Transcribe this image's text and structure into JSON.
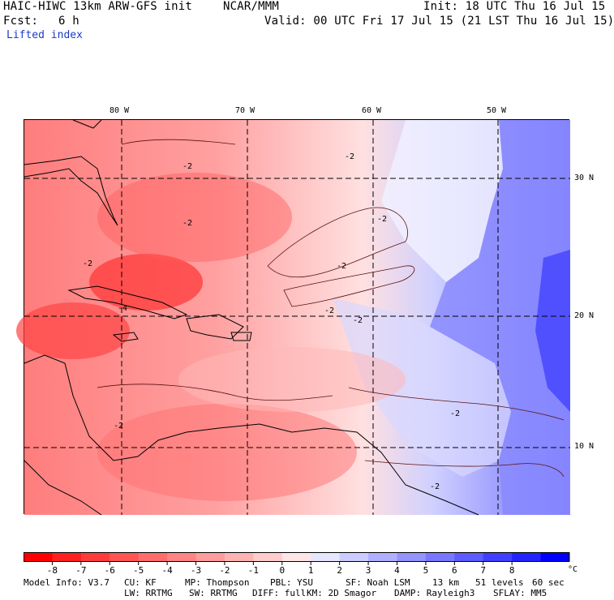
{
  "header": {
    "model_title": "HAIC-HIWC 13km ARW-GFS init",
    "institution": "NCAR/MMM",
    "init": "Init: 18 UTC Thu 16 Jul 15",
    "fcst_label": "Fcst:",
    "fcst_value": "6 h",
    "valid": "Valid: 00 UTC Fri 17 Jul 15 (21 LST Thu 16 Jul 15)",
    "field_name": "Lifted index"
  },
  "map": {
    "longitude_labels": [
      "80 W",
      "70 W",
      "60 W",
      "50 W"
    ],
    "latitude_labels": [
      "30 N",
      "20 N",
      "10 N"
    ],
    "contour_labels": [
      "-2",
      "-2",
      "-2",
      "-2",
      "-4",
      "-2",
      "-2",
      "-2",
      "-2",
      "-2",
      "-2",
      "-2"
    ]
  },
  "colorbar": {
    "ticks": [
      "-8",
      "-7",
      "-6",
      "-5",
      "-4",
      "-3",
      "-2",
      "-1",
      "0",
      "1",
      "2",
      "3",
      "4",
      "5",
      "6",
      "7",
      "8"
    ],
    "unit": "°C",
    "colors": [
      "#ff0000",
      "#ff2020",
      "#ff3c3c",
      "#ff5454",
      "#ff6c6c",
      "#ff8484",
      "#ff9c9c",
      "#ffb4b4",
      "#ffcccc",
      "#ffe6e6",
      "#e6e6ff",
      "#ccccff",
      "#b0b0ff",
      "#9494ff",
      "#7878ff",
      "#5c5cff",
      "#4040ff",
      "#2424ff",
      "#0000ff"
    ]
  },
  "footer": {
    "line1": [
      "Model Info: V3.7",
      "CU: KF",
      "MP: Thompson",
      "PBL: YSU",
      "SF: Noah LSM",
      "13 km",
      "51 levels",
      "60 sec"
    ],
    "line2": [
      "LW: RRTMG",
      "SW: RRTMG",
      "DIFF: full",
      "KM: 2D Smagor",
      "DAMP: Rayleigh3",
      "SFLAY: MM5"
    ]
  }
}
